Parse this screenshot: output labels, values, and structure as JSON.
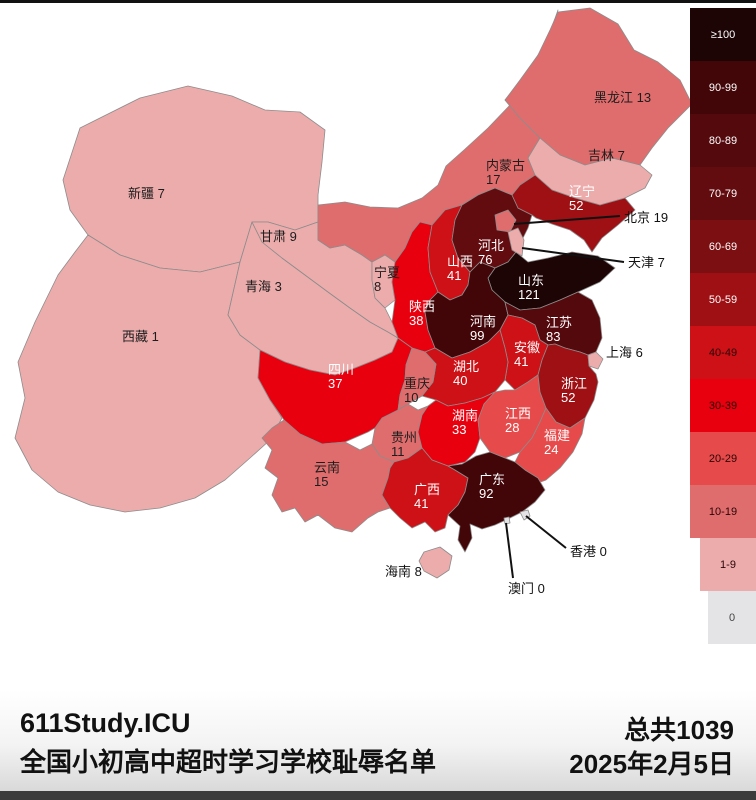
{
  "legend": {
    "items": [
      {
        "label": "≥100",
        "min": 100,
        "color": "#1d0405",
        "text_color": "#ffffff"
      },
      {
        "label": "90-99",
        "min": 90,
        "color": "#420608",
        "text_color": "#ffffff"
      },
      {
        "label": "80-89",
        "min": 80,
        "color": "#54090d",
        "text_color": "#ffffff"
      },
      {
        "label": "70-79",
        "min": 70,
        "color": "#620c10",
        "text_color": "#ffffff"
      },
      {
        "label": "60-69",
        "min": 60,
        "color": "#7c0f12",
        "text_color": "#ffffff"
      },
      {
        "label": "50-59",
        "min": 50,
        "color": "#9e1014",
        "text_color": "#ffffff"
      },
      {
        "label": "40-49",
        "min": 40,
        "color": "#cd1117",
        "text_color": "#2a0506"
      },
      {
        "label": "30-39",
        "min": 30,
        "color": "#e8000f",
        "text_color": "#2a0506"
      },
      {
        "label": "20-29",
        "min": 20,
        "color": "#e74a4a",
        "text_color": "#2a0506"
      },
      {
        "label": "10-19",
        "min": 10,
        "color": "#e06d6d",
        "text_color": "#2a0506"
      },
      {
        "label": "1-9",
        "min": 1,
        "color": "#ecacac",
        "text_color": "#2a0506"
      },
      {
        "label": "0",
        "min": 0,
        "color": "#e4e4e6",
        "text_color": "#444444"
      }
    ]
  },
  "provinces": [
    {
      "id": "xinjiang",
      "name": "新疆",
      "value": 7
    },
    {
      "id": "xizang",
      "name": "西藏",
      "value": 1
    },
    {
      "id": "qinghai",
      "name": "青海",
      "value": 3
    },
    {
      "id": "gansu",
      "name": "甘肃",
      "value": 9
    },
    {
      "id": "neimenggu",
      "name": "内蒙古",
      "value": 17
    },
    {
      "id": "ningxia",
      "name": "宁夏",
      "value": 8
    },
    {
      "id": "shaanxi",
      "name": "陕西",
      "value": 38
    },
    {
      "id": "shanxi",
      "name": "山西",
      "value": 41
    },
    {
      "id": "hebei",
      "name": "河北",
      "value": 76
    },
    {
      "id": "heilongjiang",
      "name": "黑龙江",
      "value": 13
    },
    {
      "id": "jilin",
      "name": "吉林",
      "value": 7
    },
    {
      "id": "liaoning",
      "name": "辽宁",
      "value": 52
    },
    {
      "id": "shandong",
      "name": "山东",
      "value": 121
    },
    {
      "id": "henan",
      "name": "河南",
      "value": 99
    },
    {
      "id": "jiangsu",
      "name": "江苏",
      "value": 83
    },
    {
      "id": "anhui",
      "name": "安徽",
      "value": 41
    },
    {
      "id": "hubei",
      "name": "湖北",
      "value": 40
    },
    {
      "id": "sichuan",
      "name": "四川",
      "value": 37
    },
    {
      "id": "chongqing",
      "name": "重庆",
      "value": 10
    },
    {
      "id": "guizhou",
      "name": "贵州",
      "value": 11
    },
    {
      "id": "yunnan",
      "name": "云南",
      "value": 15
    },
    {
      "id": "hunan",
      "name": "湖南",
      "value": 33
    },
    {
      "id": "jiangxi",
      "name": "江西",
      "value": 28
    },
    {
      "id": "zhejiang",
      "name": "浙江",
      "value": 52
    },
    {
      "id": "fujian",
      "name": "福建",
      "value": 24
    },
    {
      "id": "guangxi",
      "name": "广西",
      "value": 41
    },
    {
      "id": "guangdong",
      "name": "广东",
      "value": 92
    },
    {
      "id": "hainan",
      "name": "海南",
      "value": 8
    },
    {
      "id": "beijing",
      "name": "北京",
      "value": 19
    },
    {
      "id": "tianjin",
      "name": "天津",
      "value": 7
    },
    {
      "id": "shanghai",
      "name": "上海",
      "value": 6
    },
    {
      "id": "hongkong",
      "name": "香港",
      "value": 0
    },
    {
      "id": "macau",
      "name": "澳门",
      "value": 0
    }
  ],
  "footer": {
    "title": "611Study.ICU",
    "subtitle": "全国小初高中超时学习学校耻辱名单",
    "total": "总共1039",
    "date": "2025年2月5日"
  }
}
